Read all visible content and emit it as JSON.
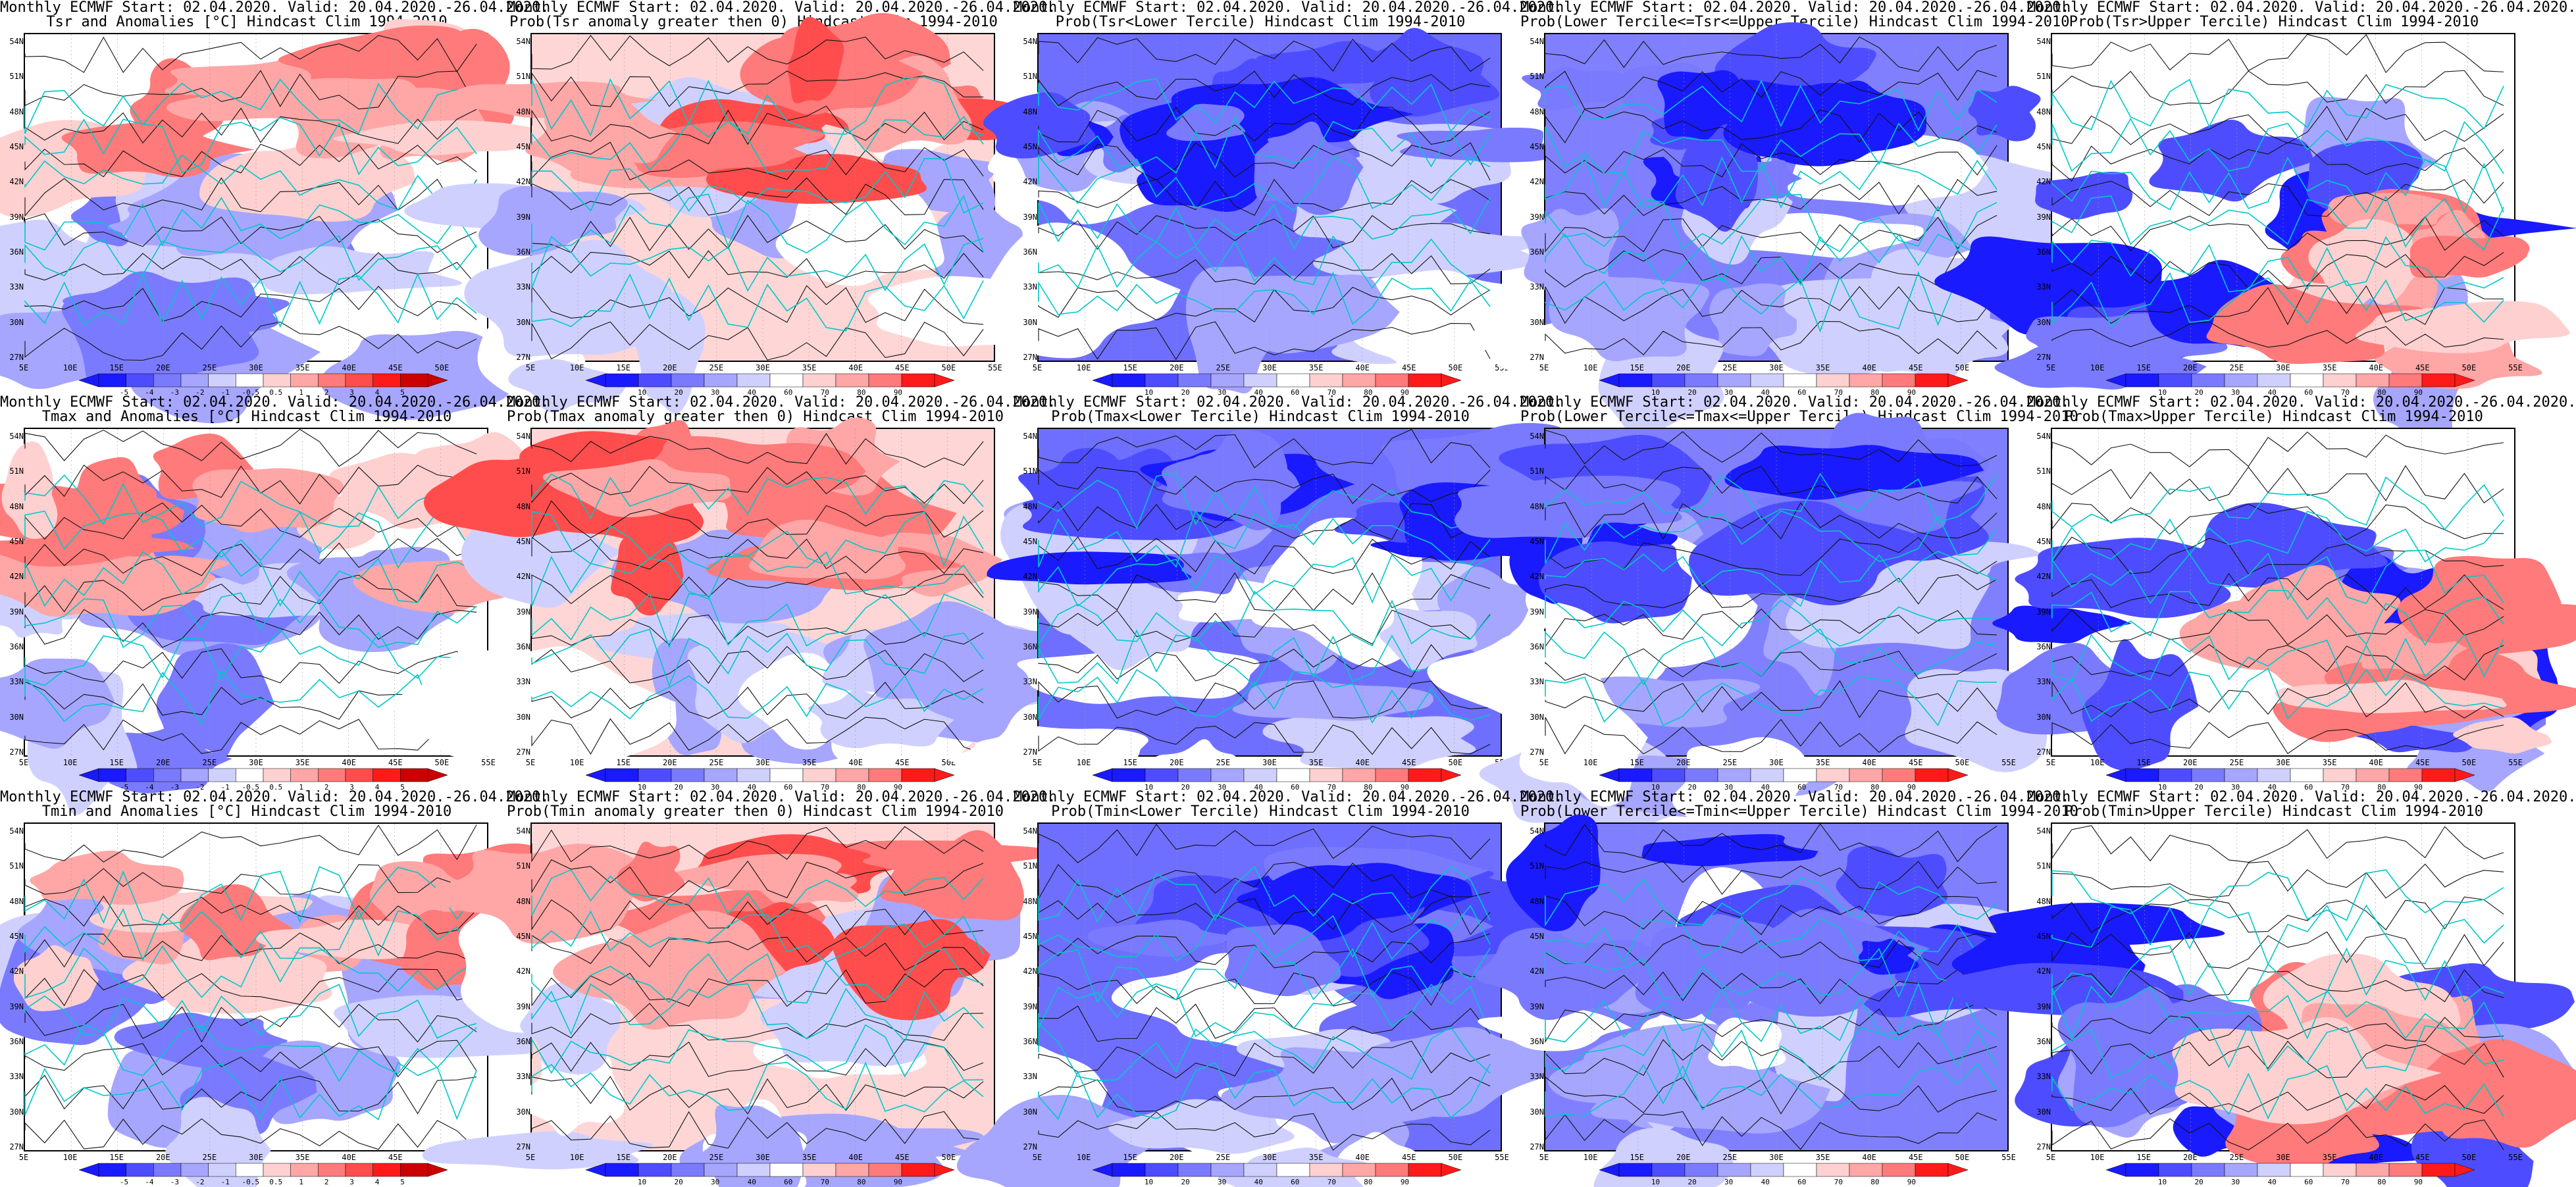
{
  "panels": [
    {
      "row": 0,
      "col": 0,
      "kind": "anom",
      "title1": "Monthly ECMWF Start: 02.04.2020. Valid: 20.04.2020.-26.04.2020.",
      "title2": "Tsr and Anomalies [°C] Hindcast Clim 1994-2010",
      "cbar_labels": [
        "-5",
        "-4",
        "-3",
        "-2",
        "-1",
        "-0.5",
        "0.5",
        "1",
        "2",
        "3",
        "4",
        "5"
      ]
    },
    {
      "row": 0,
      "col": 1,
      "kind": "prob",
      "title1": "Monthly ECMWF Start: 02.04.2020. Valid: 20.04.2020.-26.04.2020.",
      "title2": "Prob(Tsr anomaly greater then 0) Hindcast Clim 1994-2010",
      "cbar_labels": [
        "10",
        "20",
        "30",
        "40",
        "60",
        "70",
        "80",
        "90"
      ]
    },
    {
      "row": 0,
      "col": 2,
      "kind": "low",
      "title1": "Monthly ECMWF Start: 02.04.2020. Valid: 20.04.2020.-26.04.2020.",
      "title2": "Prob(Tsr<Lower Tercile) Hindcast Clim 1994-2010",
      "cbar_labels": [
        "10",
        "20",
        "30",
        "40",
        "60",
        "70",
        "80",
        "90"
      ]
    },
    {
      "row": 0,
      "col": 3,
      "kind": "mid",
      "title1": "Monthly ECMWF Start: 02.04.2020. Valid: 20.04.2020.-26.04.2020.",
      "title2": "Prob(Lower Tercile<=Tsr<=Upper Tercile) Hindcast Clim 1994-2010",
      "cbar_labels": [
        "10",
        "20",
        "30",
        "40",
        "60",
        "70",
        "80",
        "90"
      ]
    },
    {
      "row": 0,
      "col": 4,
      "kind": "up",
      "title1": "Monthly ECMWF Start: 02.04.2020. Valid: 20.04.2020.-26.04.2020.",
      "title2": "Prob(Tsr>Upper Tercile) Hindcast Clim 1994-2010",
      "cbar_labels": [
        "10",
        "20",
        "30",
        "40",
        "60",
        "70",
        "80",
        "90"
      ]
    },
    {
      "row": 1,
      "col": 0,
      "kind": "anom",
      "title1": "Monthly ECMWF Start: 02.04.2020. Valid: 20.04.2020.-26.04.2020.",
      "title2": "Tmax and Anomalies [°C] Hindcast Clim 1994-2010",
      "cbar_labels": [
        "-5",
        "-4",
        "-3",
        "-2",
        "-1",
        "-0.5",
        "0.5",
        "1",
        "2",
        "3",
        "4",
        "5"
      ]
    },
    {
      "row": 1,
      "col": 1,
      "kind": "prob",
      "title1": "Monthly ECMWF Start: 02.04.2020. Valid: 20.04.2020.-26.04.2020.",
      "title2": "Prob(Tmax anomaly greater then 0) Hindcast Clim 1994-2010",
      "cbar_labels": [
        "10",
        "20",
        "30",
        "40",
        "60",
        "70",
        "80",
        "90"
      ]
    },
    {
      "row": 1,
      "col": 2,
      "kind": "low",
      "title1": "Monthly ECMWF Start: 02.04.2020. Valid: 20.04.2020.-26.04.2020.",
      "title2": "Prob(Tmax<Lower Tercile) Hindcast Clim 1994-2010",
      "cbar_labels": [
        "10",
        "20",
        "30",
        "40",
        "60",
        "70",
        "80",
        "90"
      ]
    },
    {
      "row": 1,
      "col": 3,
      "kind": "mid",
      "title1": "Monthly ECMWF Start: 02.04.2020. Valid: 20.04.2020.-26.04.2020.",
      "title2": "Prob(Lower Tercile<=Tmax<=Upper Tercile) Hindcast Clim 1994-2010",
      "cbar_labels": [
        "10",
        "20",
        "30",
        "40",
        "60",
        "70",
        "80",
        "90"
      ]
    },
    {
      "row": 1,
      "col": 4,
      "kind": "up",
      "title1": "Monthly ECMWF Start: 02.04.2020. Valid: 20.04.2020.-26.04.2020.",
      "title2": "Prob(Tmax>Upper Tercile) Hindcast Clim 1994-2010",
      "cbar_labels": [
        "10",
        "20",
        "30",
        "40",
        "60",
        "70",
        "80",
        "90"
      ]
    },
    {
      "row": 2,
      "col": 0,
      "kind": "anom",
      "title1": "Monthly ECMWF Start: 02.04.2020. Valid: 20.04.2020.-26.04.2020.",
      "title2": "Tmin and Anomalies [°C] Hindcast Clim 1994-2010",
      "cbar_labels": [
        "-5",
        "-4",
        "-3",
        "-2",
        "-1",
        "-0.5",
        "0.5",
        "1",
        "2",
        "3",
        "4",
        "5"
      ]
    },
    {
      "row": 2,
      "col": 1,
      "kind": "prob",
      "title1": "Monthly ECMWF Start: 02.04.2020. Valid: 20.04.2020.-26.04.2020.",
      "title2": "Prob(Tmin anomaly greater then 0) Hindcast Clim 1994-2010",
      "cbar_labels": [
        "10",
        "20",
        "30",
        "40",
        "60",
        "70",
        "80",
        "90"
      ]
    },
    {
      "row": 2,
      "col": 2,
      "kind": "low",
      "title1": "Monthly ECMWF Start: 02.04.2020. Valid: 20.04.2020.-26.04.2020.",
      "title2": "Prob(Tmin<Lower Tercile) Hindcast Clim 1994-2010",
      "cbar_labels": [
        "10",
        "20",
        "30",
        "40",
        "60",
        "70",
        "80",
        "90"
      ]
    },
    {
      "row": 2,
      "col": 3,
      "kind": "mid",
      "title1": "Monthly ECMWF Start: 02.04.2020. Valid: 20.04.2020.-26.04.2020.",
      "title2": "Prob(Lower Tercile<=Tmin<=Upper Tercile) Hindcast Clim 1994-2010",
      "cbar_labels": [
        "10",
        "20",
        "30",
        "40",
        "60",
        "70",
        "80",
        "90"
      ]
    },
    {
      "row": 2,
      "col": 4,
      "kind": "up",
      "title1": "Monthly ECMWF Start: 02.04.2020. Valid: 20.04.2020.-26.04.2020.",
      "title2": "Prob(Tmin>Upper Tercile) Hindcast Clim 1994-2010",
      "cbar_labels": [
        "10",
        "20",
        "30",
        "40",
        "60",
        "70",
        "80",
        "90"
      ]
    }
  ],
  "lat_labels": [
    "54N",
    "51N",
    "48N",
    "45N",
    "42N",
    "39N",
    "36N",
    "33N",
    "30N",
    "27N"
  ],
  "lon_labels": [
    "5E",
    "10E",
    "15E",
    "20E",
    "25E",
    "30E",
    "35E",
    "40E",
    "45E",
    "50E",
    "55E"
  ],
  "colors": {
    "anom_scale": [
      "#1a1aff",
      "#4d4dff",
      "#7a7aff",
      "#a6a6ff",
      "#d0d0ff",
      "#ffffff",
      "#ffd0d0",
      "#ffa6a6",
      "#ff7a7a",
      "#ff4d4d",
      "#ff1a1a",
      "#cc0000"
    ],
    "prob_scale": [
      "#1a1aff",
      "#4d4dff",
      "#7a7aff",
      "#a6a6ff",
      "#d0d0ff",
      "#ffffff",
      "#ffd0d0",
      "#ffa6a6",
      "#ff7a7a",
      "#ff1a1a"
    ],
    "coast": "#00c8c8",
    "contour": "#111111"
  }
}
